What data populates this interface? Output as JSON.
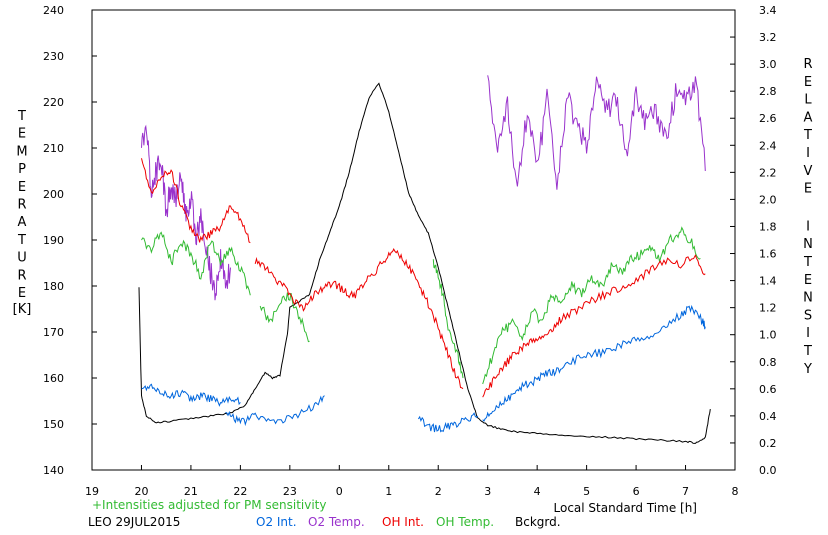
{
  "chart_data": {
    "type": "line",
    "title": "",
    "xlabel": "Local Standard Time [h]",
    "ylabel_left": "TEMPERATURE",
    "ylabel_left_unit": "[K]",
    "ylabel_right": "RELATIVE INTENSITY",
    "x_tick_labels": [
      "19",
      "20",
      "21",
      "22",
      "23",
      "0",
      "1",
      "2",
      "3",
      "4",
      "5",
      "6",
      "7",
      "8"
    ],
    "x_range": [
      19,
      32
    ],
    "y_left_range": [
      140,
      240
    ],
    "y_left_ticks": [
      "140",
      "150",
      "160",
      "170",
      "180",
      "190",
      "200",
      "210",
      "220",
      "230",
      "240"
    ],
    "y_right_range": [
      0,
      3.4
    ],
    "y_right_ticks": [
      "0.0",
      "0.2",
      "0.4",
      "0.6",
      "0.8",
      "1.0",
      "1.2",
      "1.4",
      "1.6",
      "1.8",
      "2.0",
      "2.2",
      "2.4",
      "2.6",
      "2.8",
      "3.0",
      "3.2",
      "3.4"
    ],
    "note": "+Intensities adjusted for PM sensitivity",
    "station": "LEO 29JUL2015",
    "series": [
      {
        "name": "O2 Int.",
        "axis": "right",
        "color": "#0066dd",
        "segments": [
          [
            [
              20.0,
              0.6
            ],
            [
              20.2,
              0.63
            ],
            [
              20.4,
              0.58
            ],
            [
              20.6,
              0.55
            ],
            [
              20.8,
              0.57
            ],
            [
              21.0,
              0.52
            ],
            [
              21.2,
              0.55
            ],
            [
              21.4,
              0.53
            ],
            [
              21.6,
              0.5
            ],
            [
              21.8,
              0.52
            ],
            [
              22.0,
              0.5
            ]
          ],
          [
            [
              21.7,
              0.42
            ],
            [
              21.9,
              0.38
            ],
            [
              22.1,
              0.36
            ],
            [
              22.3,
              0.4
            ],
            [
              22.6,
              0.35
            ],
            [
              22.9,
              0.38
            ],
            [
              23.2,
              0.42
            ],
            [
              23.5,
              0.47
            ],
            [
              23.7,
              0.55
            ]
          ],
          [
            [
              25.6,
              0.38
            ],
            [
              25.8,
              0.32
            ],
            [
              26.0,
              0.3
            ],
            [
              26.2,
              0.32
            ],
            [
              26.4,
              0.34
            ],
            [
              26.6,
              0.38
            ],
            [
              26.8,
              0.4
            ]
          ],
          [
            [
              26.9,
              0.38
            ],
            [
              27.1,
              0.42
            ],
            [
              27.3,
              0.5
            ],
            [
              27.5,
              0.55
            ],
            [
              27.7,
              0.62
            ],
            [
              27.9,
              0.65
            ],
            [
              28.1,
              0.7
            ],
            [
              28.3,
              0.72
            ],
            [
              28.5,
              0.76
            ],
            [
              28.8,
              0.82
            ],
            [
              29.1,
              0.85
            ],
            [
              29.4,
              0.88
            ],
            [
              29.7,
              0.92
            ],
            [
              30.0,
              0.96
            ],
            [
              30.3,
              1.0
            ],
            [
              30.6,
              1.08
            ],
            [
              30.9,
              1.14
            ],
            [
              31.1,
              1.2
            ],
            [
              31.3,
              1.12
            ],
            [
              31.4,
              1.06
            ]
          ]
        ]
      },
      {
        "name": "O2 Temp.",
        "axis": "left",
        "color": "#9933cc",
        "segments": [
          [
            [
              20.0,
              210
            ],
            [
              20.1,
              215
            ],
            [
              20.2,
              200
            ],
            [
              20.3,
              205
            ],
            [
              20.4,
              208
            ],
            [
              20.5,
              196
            ],
            [
              20.6,
              202
            ],
            [
              20.7,
              199
            ],
            [
              20.8,
              204
            ],
            [
              20.9,
              195
            ],
            [
              21.0,
              200
            ],
            [
              21.1,
              190
            ],
            [
              21.2,
              195
            ],
            [
              21.3,
              187
            ],
            [
              21.4,
              183
            ],
            [
              21.5,
              178
            ],
            [
              21.6,
              186
            ],
            [
              21.7,
              180
            ],
            [
              21.8,
              184
            ]
          ],
          [
            [
              27.0,
              225
            ],
            [
              27.2,
              208
            ],
            [
              27.4,
              220
            ],
            [
              27.6,
              200
            ],
            [
              27.8,
              218
            ],
            [
              28.0,
              205
            ],
            [
              28.2,
              221
            ],
            [
              28.4,
              200
            ],
            [
              28.6,
              222
            ],
            [
              28.8,
              215
            ],
            [
              29.0,
              210
            ],
            [
              29.2,
              224
            ],
            [
              29.4,
              218
            ],
            [
              29.6,
              220
            ],
            [
              29.8,
              209
            ],
            [
              30.0,
              222
            ],
            [
              30.2,
              215
            ],
            [
              30.4,
              218
            ],
            [
              30.6,
              212
            ],
            [
              30.8,
              222
            ],
            [
              31.0,
              220
            ],
            [
              31.2,
              225
            ],
            [
              31.4,
              205
            ]
          ]
        ]
      },
      {
        "name": "OH Int.",
        "axis": "right",
        "color": "#ee0000",
        "segments": [
          [
            [
              20.0,
              2.3
            ],
            [
              20.2,
              2.05
            ],
            [
              20.4,
              2.18
            ],
            [
              20.6,
              2.22
            ],
            [
              20.8,
              1.95
            ],
            [
              21.0,
              1.78
            ],
            [
              21.2,
              1.7
            ],
            [
              21.4,
              1.75
            ],
            [
              21.6,
              1.8
            ],
            [
              21.8,
              1.95
            ],
            [
              22.0,
              1.85
            ],
            [
              22.2,
              1.68
            ]
          ],
          [
            [
              22.3,
              1.55
            ],
            [
              22.5,
              1.5
            ],
            [
              22.7,
              1.4
            ],
            [
              22.9,
              1.35
            ],
            [
              23.1,
              1.25
            ],
            [
              23.3,
              1.2
            ],
            [
              23.5,
              1.3
            ],
            [
              23.7,
              1.35
            ],
            [
              23.9,
              1.38
            ],
            [
              24.1,
              1.32
            ],
            [
              24.3,
              1.28
            ],
            [
              24.5,
              1.38
            ],
            [
              24.7,
              1.45
            ],
            [
              24.9,
              1.55
            ],
            [
              25.1,
              1.62
            ],
            [
              25.3,
              1.55
            ],
            [
              25.5,
              1.45
            ],
            [
              25.7,
              1.3
            ],
            [
              25.9,
              1.15
            ],
            [
              26.1,
              0.95
            ],
            [
              26.3,
              0.75
            ],
            [
              26.5,
              0.6
            ]
          ],
          [
            [
              26.9,
              0.55
            ],
            [
              27.1,
              0.65
            ],
            [
              27.3,
              0.75
            ],
            [
              27.5,
              0.85
            ],
            [
              27.7,
              0.9
            ],
            [
              27.9,
              0.95
            ],
            [
              28.1,
              1.0
            ],
            [
              28.3,
              1.05
            ],
            [
              28.5,
              1.12
            ],
            [
              28.8,
              1.18
            ],
            [
              29.1,
              1.25
            ],
            [
              29.4,
              1.3
            ],
            [
              29.7,
              1.35
            ],
            [
              30.0,
              1.4
            ],
            [
              30.3,
              1.48
            ],
            [
              30.6,
              1.55
            ],
            [
              30.9,
              1.52
            ],
            [
              31.2,
              1.58
            ],
            [
              31.4,
              1.45
            ]
          ]
        ]
      },
      {
        "name": "OH Temp.",
        "axis": "left",
        "color": "#33bb33",
        "segments": [
          [
            [
              20.0,
              190
            ],
            [
              20.2,
              188
            ],
            [
              20.4,
              192
            ],
            [
              20.6,
              185
            ],
            [
              20.8,
              190
            ],
            [
              21.0,
              187
            ],
            [
              21.2,
              182
            ],
            [
              21.4,
              190
            ],
            [
              21.6,
              185
            ],
            [
              21.8,
              188
            ],
            [
              22.0,
              184
            ],
            [
              22.2,
              178
            ]
          ],
          [
            [
              22.4,
              176
            ],
            [
              22.6,
              172
            ],
            [
              22.8,
              176
            ],
            [
              23.0,
              178
            ],
            [
              23.2,
              173
            ],
            [
              23.4,
              168
            ]
          ],
          [
            [
              25.9,
              185
            ],
            [
              26.0,
              182
            ],
            [
              26.1,
              178
            ],
            [
              26.2,
              170
            ],
            [
              26.4,
              165
            ],
            [
              26.5,
              160
            ]
          ],
          [
            [
              26.9,
              158
            ],
            [
              27.1,
              165
            ],
            [
              27.3,
              170
            ],
            [
              27.5,
              172
            ],
            [
              27.7,
              168
            ],
            [
              27.9,
              175
            ],
            [
              28.1,
              172
            ],
            [
              28.3,
              178
            ],
            [
              28.5,
              176
            ],
            [
              28.7,
              180
            ],
            [
              28.9,
              178
            ],
            [
              29.1,
              182
            ],
            [
              29.3,
              180
            ],
            [
              29.5,
              184
            ],
            [
              29.7,
              183
            ],
            [
              29.9,
              186
            ],
            [
              30.1,
              187
            ],
            [
              30.3,
              188
            ],
            [
              30.5,
              186
            ],
            [
              30.7,
              190
            ],
            [
              30.9,
              192
            ],
            [
              31.1,
              190
            ],
            [
              31.3,
              186
            ]
          ]
        ]
      },
      {
        "name": "Bckgrd.",
        "axis": "right",
        "color": "#000000",
        "segments": [
          [
            [
              19.95,
              1.35
            ],
            [
              20.0,
              0.55
            ],
            [
              20.1,
              0.4
            ],
            [
              20.3,
              0.35
            ],
            [
              20.6,
              0.36
            ],
            [
              21.0,
              0.38
            ],
            [
              21.4,
              0.4
            ],
            [
              21.8,
              0.42
            ],
            [
              22.1,
              0.48
            ],
            [
              22.3,
              0.6
            ],
            [
              22.5,
              0.72
            ],
            [
              22.65,
              0.68
            ],
            [
              22.8,
              0.7
            ],
            [
              22.95,
              1.0
            ],
            [
              23.0,
              1.2
            ],
            [
              23.2,
              1.25
            ],
            [
              23.4,
              1.3
            ],
            [
              23.6,
              1.55
            ],
            [
              23.8,
              1.75
            ],
            [
              24.0,
              1.95
            ],
            [
              24.2,
              2.2
            ],
            [
              24.4,
              2.5
            ],
            [
              24.6,
              2.75
            ],
            [
              24.8,
              2.86
            ],
            [
              25.0,
              2.65
            ],
            [
              25.2,
              2.35
            ],
            [
              25.4,
              2.05
            ],
            [
              25.6,
              1.88
            ],
            [
              25.8,
              1.75
            ],
            [
              26.0,
              1.5
            ],
            [
              26.2,
              1.2
            ],
            [
              26.4,
              0.9
            ],
            [
              26.6,
              0.6
            ],
            [
              26.8,
              0.38
            ],
            [
              27.0,
              0.33
            ],
            [
              27.3,
              0.3
            ],
            [
              27.6,
              0.28
            ],
            [
              28.0,
              0.27
            ],
            [
              28.5,
              0.26
            ],
            [
              29.0,
              0.25
            ],
            [
              29.5,
              0.24
            ],
            [
              30.0,
              0.23
            ],
            [
              30.5,
              0.22
            ],
            [
              31.0,
              0.21
            ],
            [
              31.2,
              0.2
            ],
            [
              31.4,
              0.24
            ],
            [
              31.5,
              0.45
            ]
          ]
        ]
      }
    ]
  }
}
